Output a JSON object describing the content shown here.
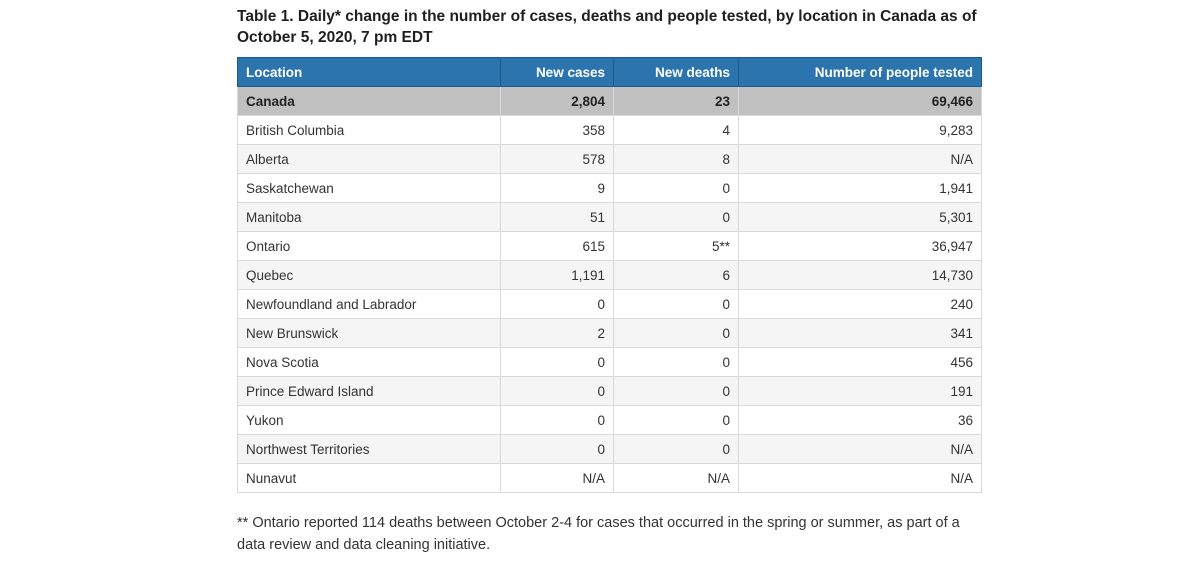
{
  "page": {
    "title": "Table 1. Daily* change in the number of cases, deaths and people tested, by location in Canada as of October 5, 2020, 7 pm EDT",
    "footnote": "** Ontario reported 114 deaths between October 2-4 for cases that occurred in the spring or summer, as part of a data review and data cleaning initiative."
  },
  "table": {
    "columns": [
      "Location",
      "New cases",
      "New deaths",
      "Number of people tested"
    ],
    "rows": [
      {
        "location": "Canada",
        "new_cases": "2,804",
        "new_deaths": "23",
        "people_tested": "69,466"
      },
      {
        "location": "British Columbia",
        "new_cases": "358",
        "new_deaths": "4",
        "people_tested": "9,283"
      },
      {
        "location": "Alberta",
        "new_cases": "578",
        "new_deaths": "8",
        "people_tested": "N/A"
      },
      {
        "location": "Saskatchewan",
        "new_cases": "9",
        "new_deaths": "0",
        "people_tested": "1,941"
      },
      {
        "location": "Manitoba",
        "new_cases": "51",
        "new_deaths": "0",
        "people_tested": "5,301"
      },
      {
        "location": "Ontario",
        "new_cases": "615",
        "new_deaths": "5**",
        "people_tested": "36,947"
      },
      {
        "location": "Quebec",
        "new_cases": "1,191",
        "new_deaths": "6",
        "people_tested": "14,730"
      },
      {
        "location": "Newfoundland and Labrador",
        "new_cases": "0",
        "new_deaths": "0",
        "people_tested": "240"
      },
      {
        "location": "New Brunswick",
        "new_cases": "2",
        "new_deaths": "0",
        "people_tested": "341"
      },
      {
        "location": "Nova Scotia",
        "new_cases": "0",
        "new_deaths": "0",
        "people_tested": "456"
      },
      {
        "location": "Prince Edward Island",
        "new_cases": "0",
        "new_deaths": "0",
        "people_tested": "191"
      },
      {
        "location": "Yukon",
        "new_cases": "0",
        "new_deaths": "0",
        "people_tested": "36"
      },
      {
        "location": "Northwest Territories",
        "new_cases": "0",
        "new_deaths": "0",
        "people_tested": "N/A"
      },
      {
        "location": "Nunavut",
        "new_cases": "N/A",
        "new_deaths": "N/A",
        "people_tested": "N/A"
      }
    ]
  },
  "colors": {
    "header-bg": "#2b74ad",
    "header-border": "#1c5a8a",
    "canada-bg": "#c0c0c0",
    "stripe-bg": "#f5f5f5",
    "grid-border": "#d9d9d9",
    "text": "#333333",
    "title-text": "#1f1f1f",
    "header-text": "#ffffff"
  }
}
